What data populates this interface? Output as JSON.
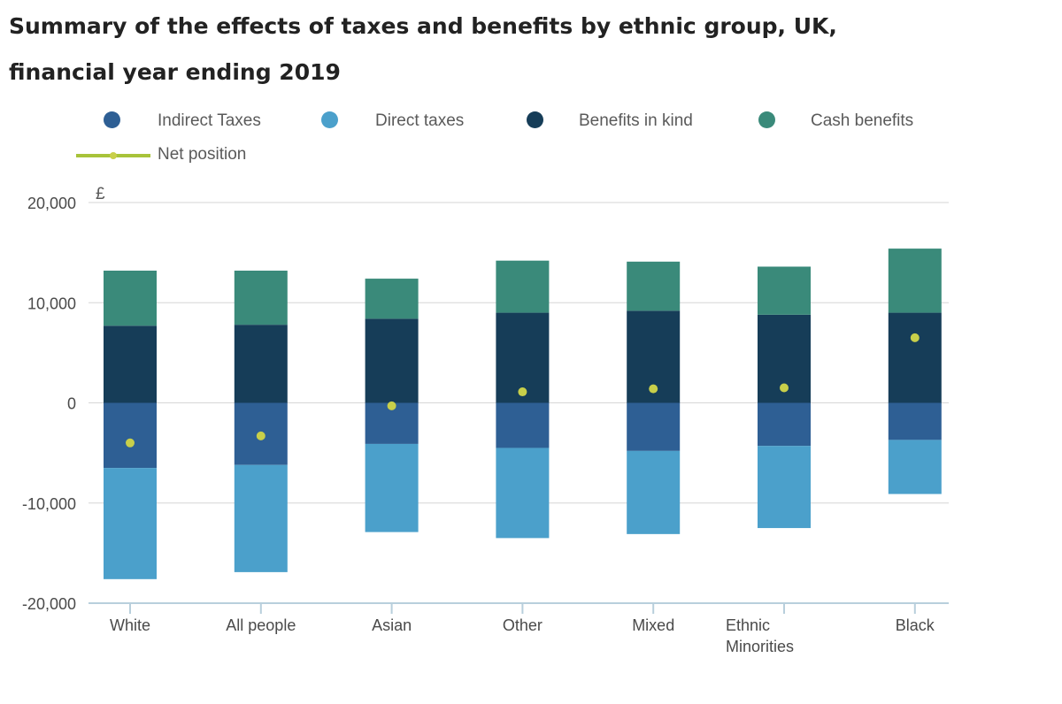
{
  "chart_data": {
    "type": "bar",
    "stacked": true,
    "title_line1": "Summary of the effects of taxes and benefits by ethnic group, UK,",
    "title_line2": "financial year ending 2019",
    "ylabel": "£",
    "ylim": [
      -20000,
      20000
    ],
    "yticks": [
      20000,
      10000,
      0,
      -10000,
      -20000
    ],
    "ytick_labels": [
      "20,000",
      "10,000",
      "0",
      "-10,000",
      "-20,000"
    ],
    "categories": [
      "White",
      "All people",
      "Asian",
      "Other",
      "Mixed",
      "Ethnic Minorities",
      "Black"
    ],
    "category_labels": [
      [
        "White"
      ],
      [
        "All people"
      ],
      [
        "Asian"
      ],
      [
        "Other"
      ],
      [
        "Mixed"
      ],
      [
        "Ethnic",
        "Minorities"
      ],
      [
        "Black"
      ]
    ],
    "series": [
      {
        "name": "Indirect Taxes",
        "color": "#2e5f94",
        "values": [
          -6500,
          -6200,
          -4100,
          -4500,
          -4800,
          -4300,
          -3700
        ]
      },
      {
        "name": "Direct taxes",
        "color": "#4ba0cb",
        "values": [
          -11100,
          -10700,
          -8800,
          -9000,
          -8300,
          -8200,
          -5400
        ]
      },
      {
        "name": "Benefits in kind",
        "color": "#163d58",
        "values": [
          7700,
          7800,
          8400,
          9000,
          9200,
          8800,
          9000
        ]
      },
      {
        "name": "Cash benefits",
        "color": "#3a8a7a",
        "values": [
          5500,
          5400,
          4000,
          5200,
          4900,
          4800,
          6400
        ]
      }
    ],
    "line_series": {
      "name": "Net position",
      "color": "#a8c33a",
      "values": [
        -4000,
        -3300,
        -300,
        1100,
        1400,
        1500,
        6500
      ]
    },
    "grid": true
  }
}
